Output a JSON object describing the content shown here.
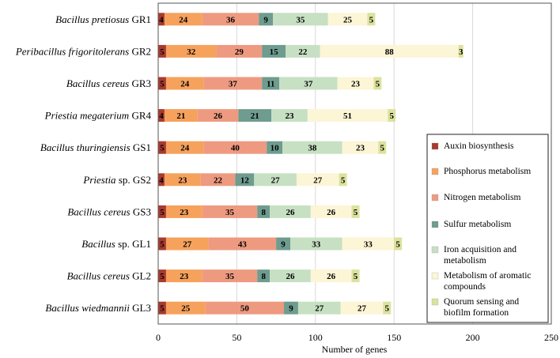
{
  "chart_data": {
    "type": "bar",
    "orientation": "horizontal",
    "stacked": true,
    "xlabel": "Number of genes",
    "xlim": [
      0,
      250
    ],
    "xticks": [
      0,
      50,
      100,
      150,
      200,
      250
    ],
    "grid": "vertical",
    "legend_position": "right",
    "categories": [
      {
        "italic": "Bacillus pretiosus",
        "plain": "GR1"
      },
      {
        "italic": "Peribacillus frigoritolerans",
        "plain": "GR2"
      },
      {
        "italic": "Bacillus cereus",
        "plain": "GR3"
      },
      {
        "italic": "Priestia megaterium",
        "plain": "GR4"
      },
      {
        "italic": "Bacillus thuringiensis",
        "plain": "GS1"
      },
      {
        "italic": "Priestia",
        "plain": "sp. GS2"
      },
      {
        "italic": "Bacillus cereus",
        "plain": "GS3"
      },
      {
        "italic": "Bacillus",
        "plain": "sp. GL1"
      },
      {
        "italic": "Bacillus cereus",
        "plain": "GL2"
      },
      {
        "italic": "Bacillus wiedmannii",
        "plain": "GL3"
      }
    ],
    "series": [
      {
        "name": "Auxin biosynthesis",
        "color": "#a93a2e",
        "values": [
          4,
          5,
          5,
          4,
          5,
          4,
          5,
          5,
          5,
          5
        ]
      },
      {
        "name": "Phosphorus metabolism",
        "color": "#f6a25d",
        "values": [
          24,
          32,
          24,
          21,
          24,
          23,
          23,
          27,
          23,
          25
        ]
      },
      {
        "name": "Nitrogen metabolism",
        "color": "#ee9a80",
        "values": [
          36,
          29,
          37,
          26,
          40,
          22,
          35,
          43,
          35,
          50
        ]
      },
      {
        "name": "Sulfur metabolism",
        "color": "#6e9c8f",
        "values": [
          9,
          15,
          11,
          21,
          10,
          12,
          8,
          9,
          8,
          9
        ]
      },
      {
        "name": "Iron acquisition and metabolism",
        "lines": [
          "Iron acquisition and",
          "metabolism"
        ],
        "color": "#c7e0c3",
        "values": [
          35,
          22,
          37,
          23,
          38,
          27,
          26,
          33,
          26,
          27
        ]
      },
      {
        "name": "Metabolism of aromatic compounds",
        "lines": [
          "Metabolism of aromatic",
          "compounds"
        ],
        "color": "#fcf5d6",
        "values": [
          25,
          88,
          23,
          51,
          23,
          27,
          26,
          33,
          26,
          27
        ]
      },
      {
        "name": "Quorum sensing and biofilm formation",
        "lines": [
          "Quorum sensing and",
          "biofilm formation"
        ],
        "color": "#dbe29c",
        "values": [
          5,
          3,
          5,
          5,
          5,
          5,
          5,
          5,
          5,
          5
        ]
      }
    ]
  }
}
